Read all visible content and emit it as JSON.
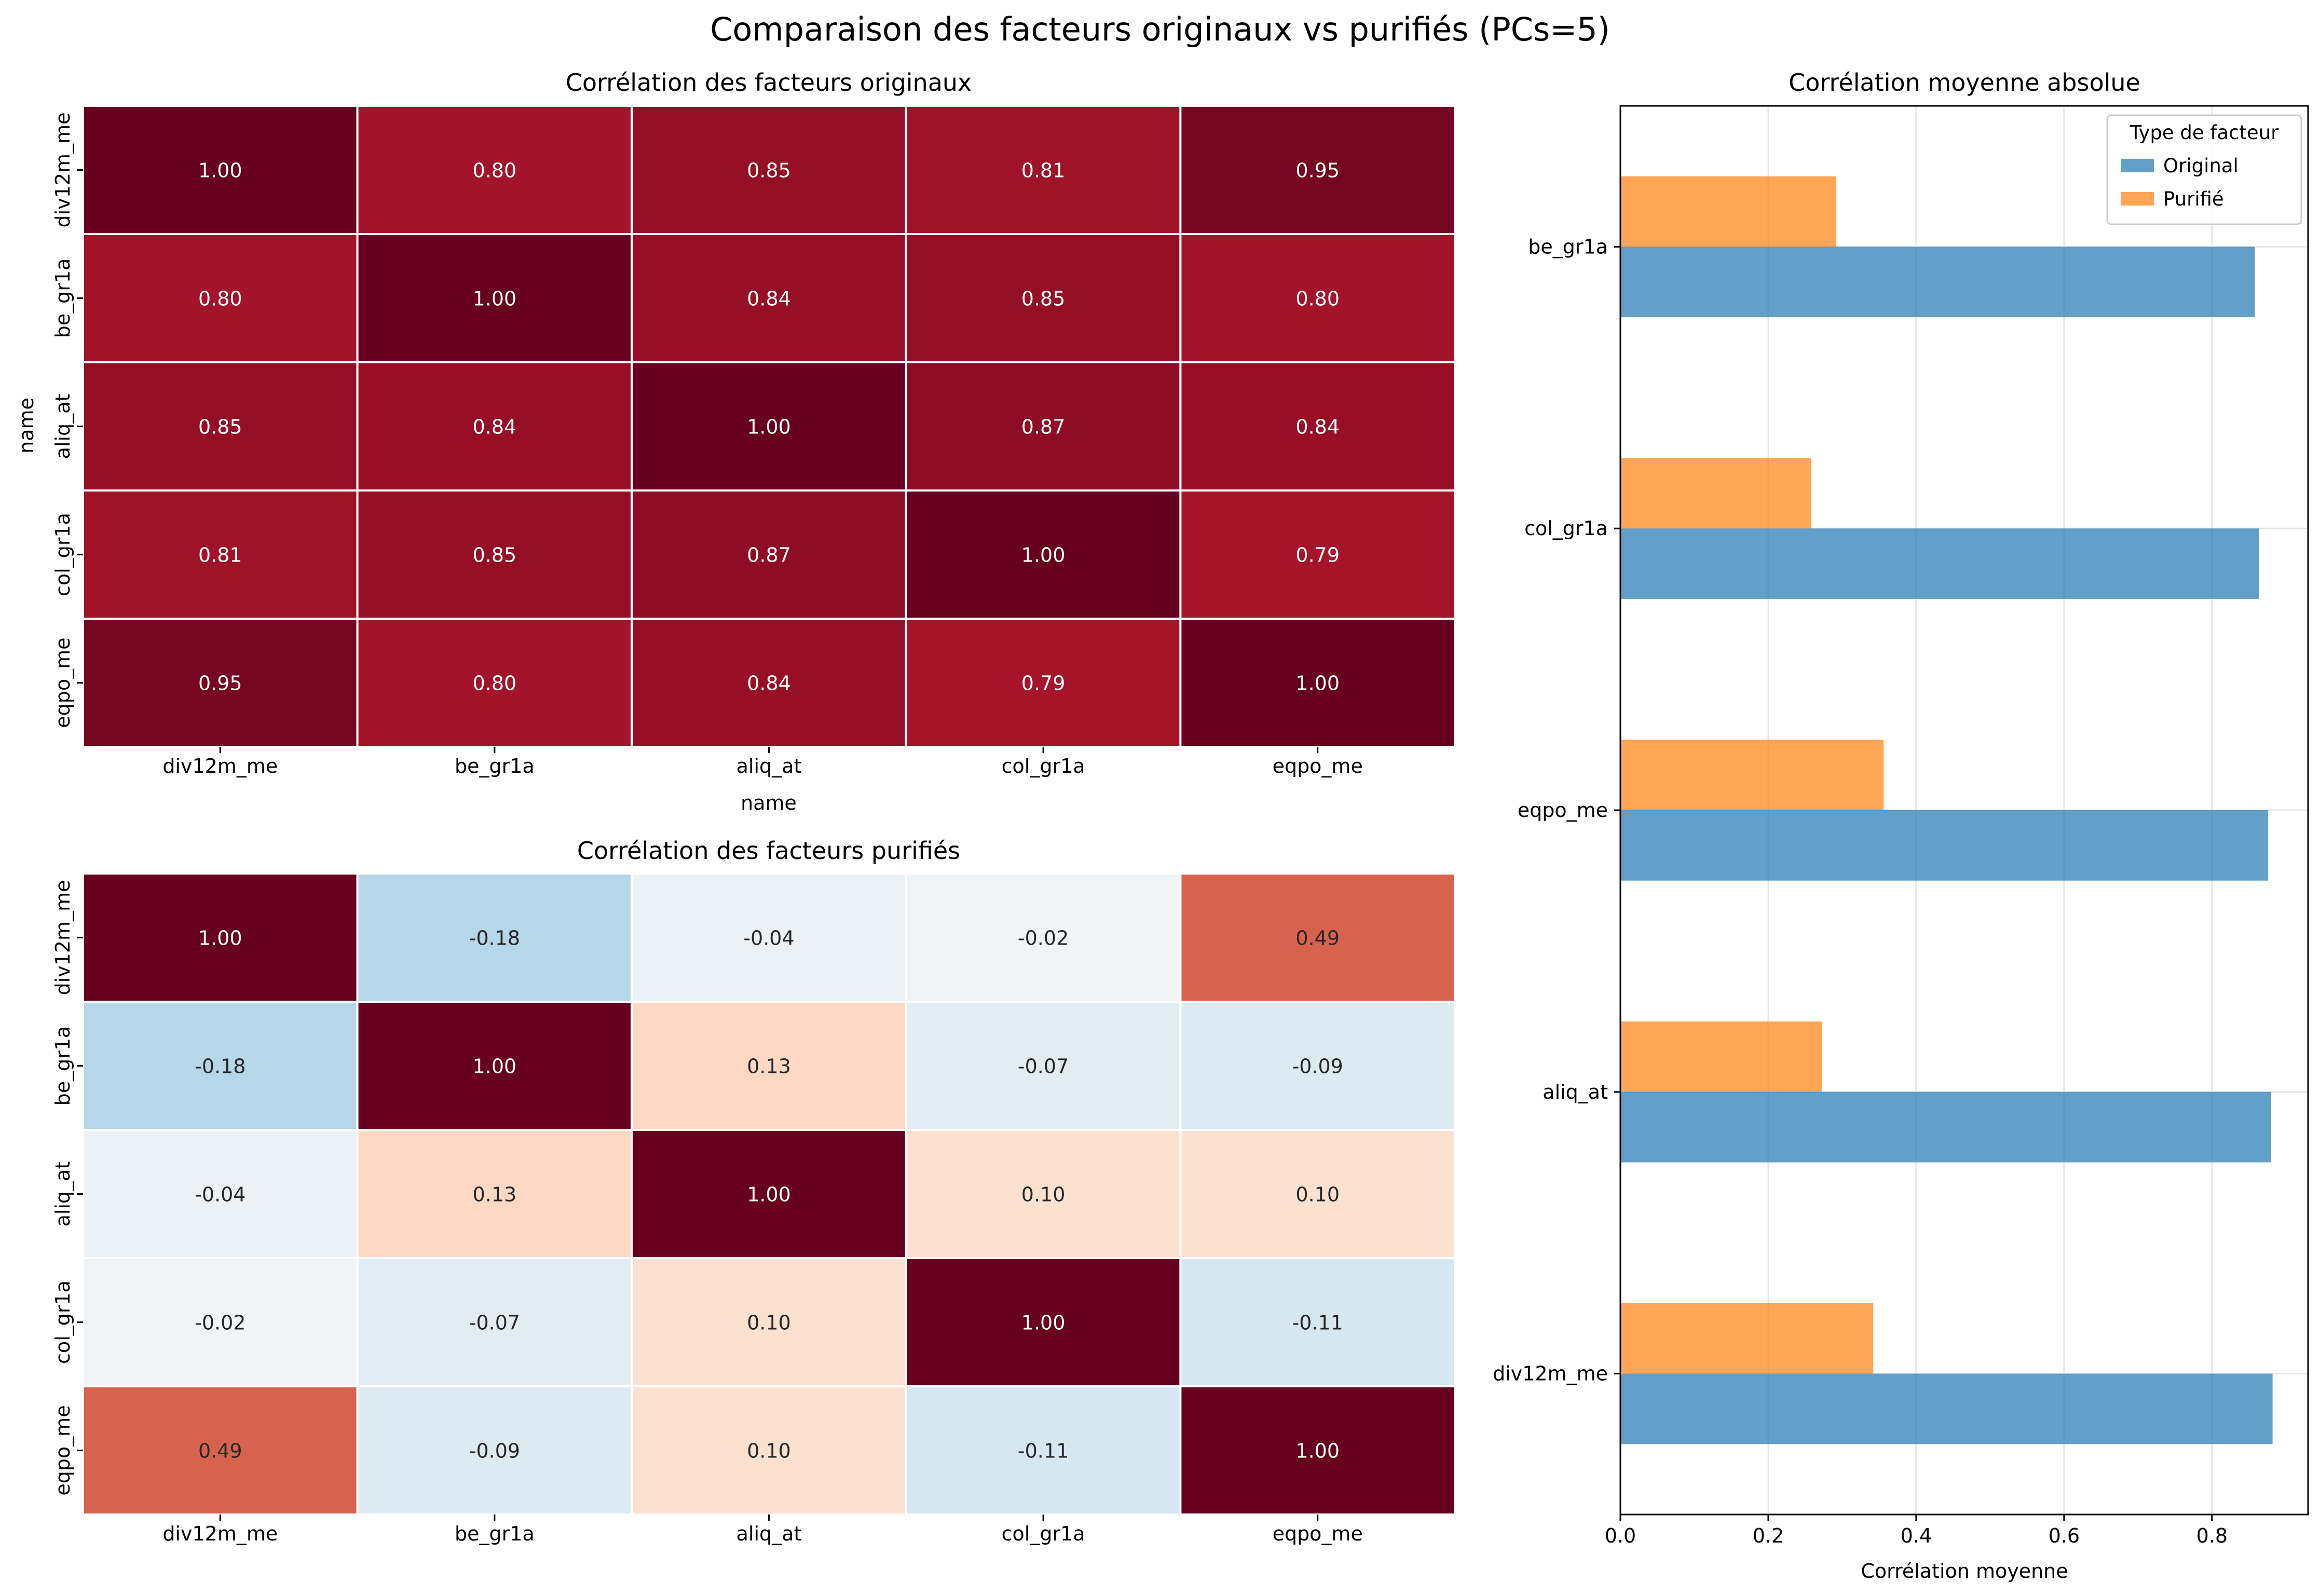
{
  "figure": {
    "title": "Comparaison des facteurs originaux vs purifiés (PCs=5)"
  },
  "chart_data": [
    {
      "type": "heatmap",
      "title": "Corrélation des facteurs originaux",
      "xlabel": "name",
      "ylabel": "name",
      "x_categories": [
        "div12m_me",
        "be_gr1a",
        "aliq_at",
        "col_gr1a",
        "eqpo_me"
      ],
      "y_categories": [
        "div12m_me",
        "be_gr1a",
        "aliq_at",
        "col_gr1a",
        "eqpo_me"
      ],
      "values": [
        [
          1.0,
          0.8,
          0.85,
          0.81,
          0.95
        ],
        [
          0.8,
          1.0,
          0.84,
          0.85,
          0.8
        ],
        [
          0.85,
          0.84,
          1.0,
          0.87,
          0.84
        ],
        [
          0.81,
          0.85,
          0.87,
          1.0,
          0.79
        ],
        [
          0.95,
          0.8,
          0.84,
          0.79,
          1.0
        ]
      ],
      "vmin": -1,
      "vmax": 1,
      "colormap": "RdBu_r",
      "annotation_format": "0.00"
    },
    {
      "type": "heatmap",
      "title": "Corrélation des facteurs purifiés",
      "xlabel": "",
      "ylabel": "",
      "x_categories": [
        "div12m_me",
        "be_gr1a",
        "aliq_at",
        "col_gr1a",
        "eqpo_me"
      ],
      "y_categories": [
        "div12m_me",
        "be_gr1a",
        "aliq_at",
        "col_gr1a",
        "eqpo_me"
      ],
      "values": [
        [
          1.0,
          -0.18,
          -0.04,
          -0.02,
          0.49
        ],
        [
          -0.18,
          1.0,
          0.13,
          -0.07,
          -0.09
        ],
        [
          -0.04,
          0.13,
          1.0,
          0.1,
          0.1
        ],
        [
          -0.02,
          -0.07,
          0.1,
          1.0,
          -0.11
        ],
        [
          0.49,
          -0.09,
          0.1,
          -0.11,
          1.0
        ]
      ],
      "vmin": -1,
      "vmax": 1,
      "colormap": "RdBu_r",
      "annotation_format": "0.00"
    },
    {
      "type": "bar",
      "orientation": "horizontal",
      "title": "Corrélation moyenne absolue",
      "xlabel": "Corrélation moyenne",
      "ylabel": "",
      "categories": [
        "div12m_me",
        "aliq_at",
        "eqpo_me",
        "col_gr1a",
        "be_gr1a"
      ],
      "series": [
        {
          "name": "Original",
          "color": "#1f77b4",
          "values": [
            0.882,
            0.88,
            0.876,
            0.864,
            0.858
          ]
        },
        {
          "name": "Purifié",
          "color": "#ff7f0e",
          "values": [
            0.342,
            0.273,
            0.356,
            0.258,
            0.292
          ]
        }
      ],
      "xlim": [
        0,
        0.93
      ],
      "xticks": [
        0.0,
        0.2,
        0.4,
        0.6,
        0.8
      ],
      "tick_labels": [
        "0.0",
        "0.2",
        "0.4",
        "0.6",
        "0.8"
      ],
      "grid": true,
      "legend_title": "Type de facteur",
      "legend_placement": "top-right"
    }
  ]
}
